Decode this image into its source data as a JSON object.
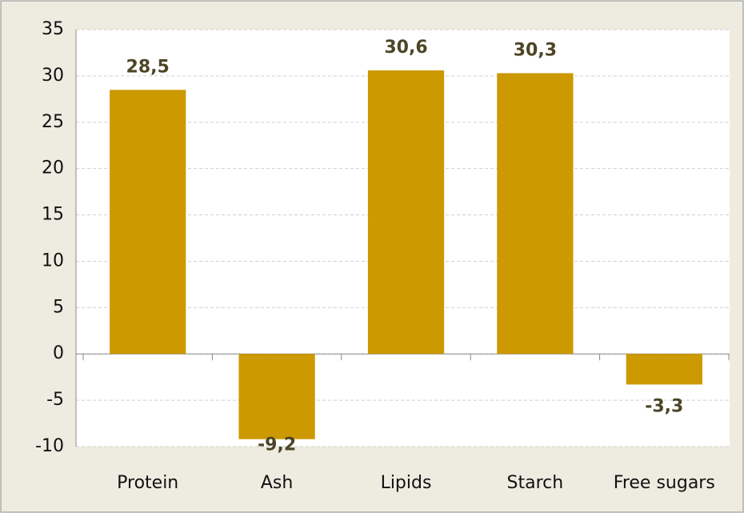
{
  "chart_data": {
    "type": "bar",
    "categories": [
      "Protein",
      "Ash",
      "Lipids",
      "Starch",
      "Free sugars"
    ],
    "values": [
      28.5,
      -9.2,
      30.6,
      30.3,
      -3.3
    ],
    "value_labels": [
      "28,5",
      "-9,2",
      "30,6",
      "30,3",
      "-3,3"
    ],
    "color": "#cc9900",
    "ylim": [
      -10,
      35
    ],
    "yticks": [
      -10,
      -5,
      0,
      5,
      10,
      15,
      20,
      25,
      30,
      35
    ],
    "grid": true
  }
}
